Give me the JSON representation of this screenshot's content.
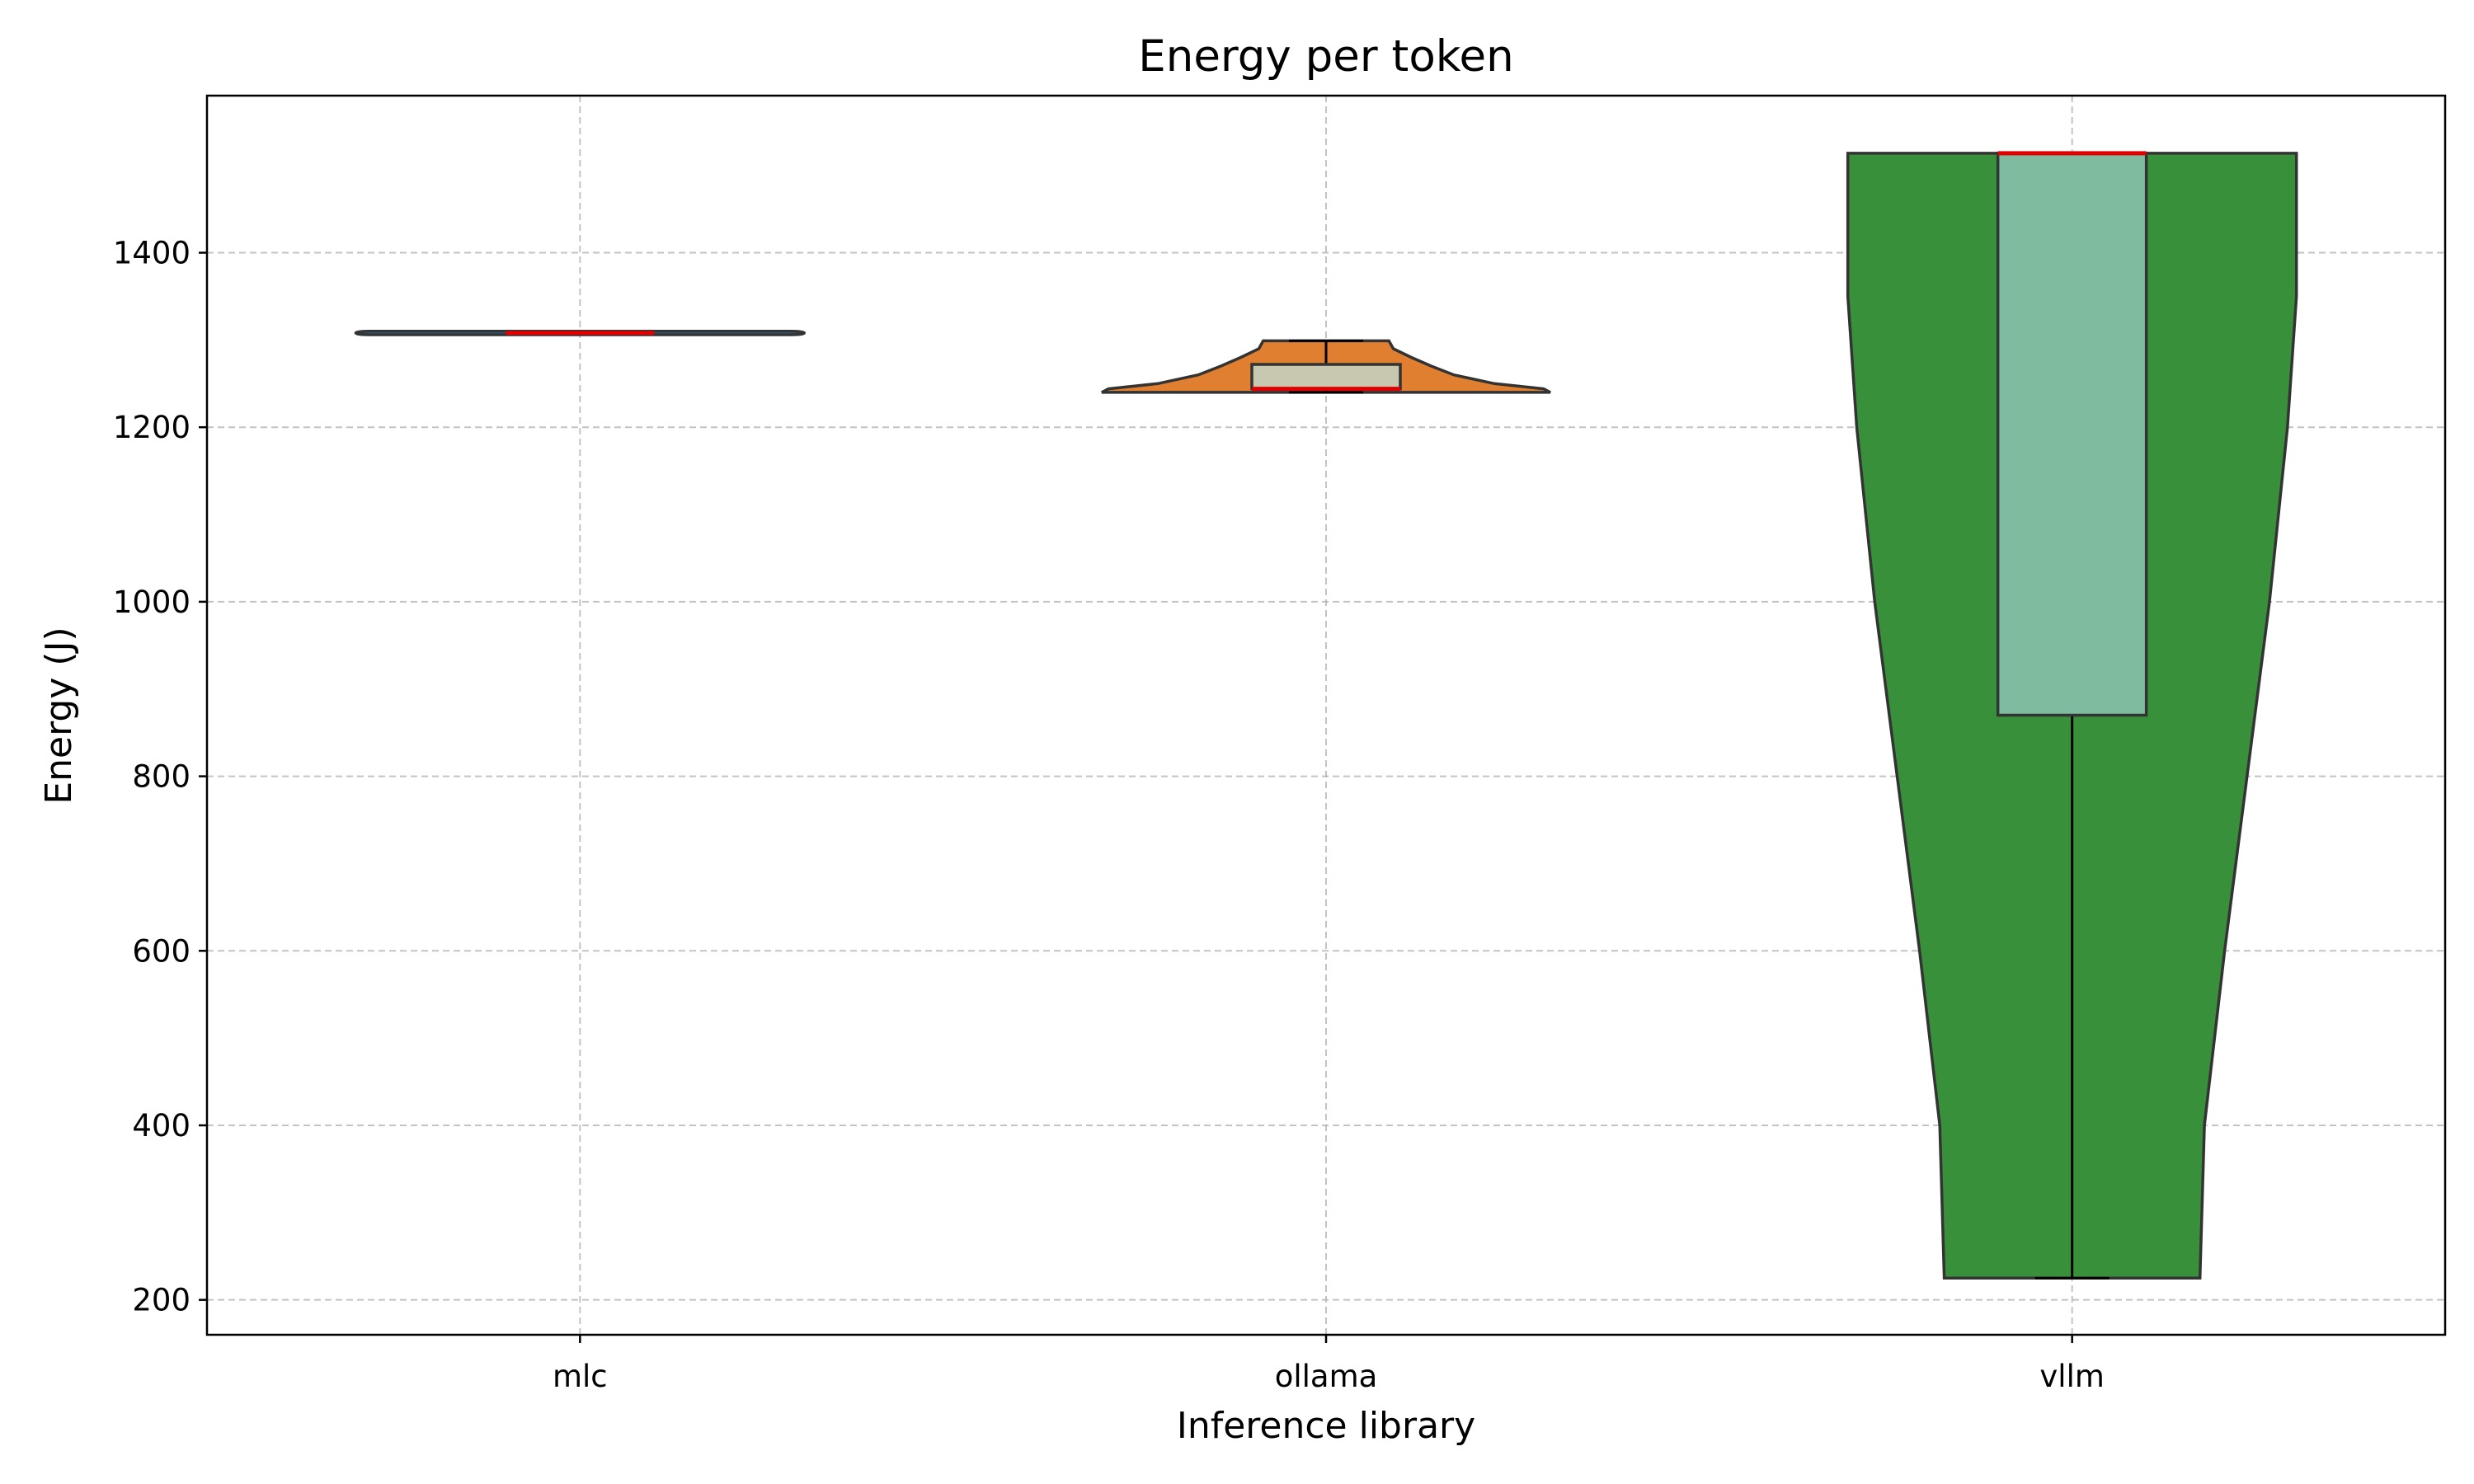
{
  "chart_data": {
    "type": "violin",
    "title": "Energy per token",
    "xlabel": "Inference library",
    "ylabel": "Energy (J)",
    "categories": [
      "mlc",
      "ollama",
      "vllm"
    ],
    "ylim": [
      160,
      1580
    ],
    "yticks": [
      200,
      400,
      600,
      800,
      1000,
      1200,
      1400
    ],
    "grid": true,
    "colors": {
      "mlc": "#1f77b4",
      "ollama": "#e07f2f",
      "vllm": "#38913a",
      "box": "#c8c8b0",
      "median": "#e00000"
    },
    "series": [
      {
        "name": "mlc",
        "min": 1308,
        "q1": 1308,
        "median": 1308,
        "q3": 1308,
        "max": 1308,
        "density": [
          [
            1306,
            1.0
          ],
          [
            1310,
            1.0
          ]
        ]
      },
      {
        "name": "ollama",
        "min": 1240,
        "q1": 1244,
        "median": 1244,
        "q3": 1272,
        "max": 1299,
        "density": [
          [
            1240,
            1.0
          ],
          [
            1244,
            0.97
          ],
          [
            1250,
            0.75
          ],
          [
            1260,
            0.57
          ],
          [
            1270,
            0.47
          ],
          [
            1280,
            0.38
          ],
          [
            1290,
            0.3
          ],
          [
            1299,
            0.28
          ]
        ]
      },
      {
        "name": "vllm",
        "min": 225,
        "q1": 870,
        "median": 1514,
        "q3": 1514,
        "max": 1514,
        "density": [
          [
            225,
            0.57
          ],
          [
            400,
            0.59
          ],
          [
            600,
            0.68
          ],
          [
            800,
            0.78
          ],
          [
            1000,
            0.88
          ],
          [
            1200,
            0.96
          ],
          [
            1350,
            1.0
          ],
          [
            1514,
            1.0
          ]
        ]
      }
    ]
  }
}
